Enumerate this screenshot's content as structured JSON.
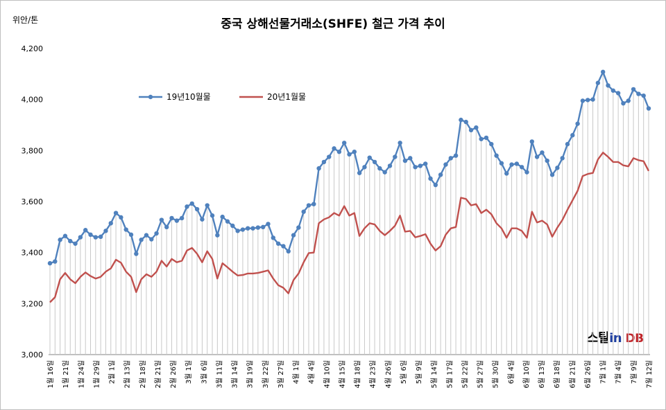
{
  "header": {
    "title": "중국 상해선물거래소(SHFE) 철근 가격 추이",
    "unit": "위안/톤"
  },
  "logo": {
    "part1": "스틸",
    "part2": "in",
    "part3": " DB"
  },
  "colors": {
    "series1": "#4f81bd",
    "series2": "#c0504d",
    "droplines": "#c8c8c8"
  },
  "chart_data": {
    "type": "line",
    "title": "중국 상해선물거래소(SHFE) 철근 가격 추이",
    "ylabel": "위안/톤",
    "ylim": [
      3000,
      4200
    ],
    "yticks": [
      3000,
      3200,
      3400,
      3600,
      3800,
      4000,
      4200
    ],
    "ytick_labels": [
      "3,000",
      "3,200",
      "3,400",
      "3,600",
      "3,800",
      "4,000",
      "4,200"
    ],
    "legend_position": "top-left",
    "drop_lines": true,
    "x_tick_labels": [
      "1월 16일",
      "1월 21일",
      "1월 24일",
      "1월 29일",
      "2월 1일",
      "2월 13일",
      "2월 18일",
      "2월 21일",
      "2월 26일",
      "3월 1일",
      "3월 6일",
      "3월 11일",
      "3월 14일",
      "3월 19일",
      "3월 22일",
      "3월 27일",
      "4월 1일",
      "4월 4일",
      "4월 10일",
      "4월 15일",
      "4월 18일",
      "4월 23일",
      "4월 26일",
      "5월 6일",
      "5월 9일",
      "5월 14일",
      "5월 17일",
      "5월 22일",
      "5월 27일",
      "5월 30일",
      "6월 4일",
      "6월 10일",
      "6월 13일",
      "6월 18일",
      "6월 21일",
      "6월 26일",
      "7월 1일",
      "7월 4일",
      "7월 9일",
      "7월 12일"
    ],
    "series": [
      {
        "name": "19년10월물",
        "values": [
          3358,
          3365,
          3450,
          3465,
          3445,
          3435,
          3460,
          3488,
          3470,
          3460,
          3462,
          3485,
          3515,
          3555,
          3538,
          3490,
          3470,
          3395,
          3450,
          3468,
          3452,
          3475,
          3528,
          3500,
          3535,
          3525,
          3535,
          3580,
          3592,
          3570,
          3530,
          3585,
          3545,
          3468,
          3540,
          3522,
          3505,
          3485,
          3490,
          3495,
          3495,
          3498,
          3500,
          3512,
          3458,
          3435,
          3425,
          3405,
          3468,
          3498,
          3560,
          3585,
          3590,
          3730,
          3755,
          3775,
          3808,
          3795,
          3830,
          3785,
          3795,
          3712,
          3735,
          3772,
          3755,
          3730,
          3715,
          3740,
          3775,
          3830,
          3760,
          3770,
          3735,
          3740,
          3748,
          3690,
          3665,
          3705,
          3745,
          3770,
          3780,
          3920,
          3912,
          3880,
          3890,
          3845,
          3850,
          3825,
          3780,
          3750,
          3710,
          3745,
          3748,
          3735,
          3715,
          3835,
          3775,
          3792,
          3760,
          3705,
          3732,
          3770,
          3825,
          3860,
          3905,
          3995,
          3998,
          4000,
          4065,
          4108,
          4055,
          4035,
          4025,
          3985,
          3995,
          4040,
          4022,
          4015,
          3965
        ]
      },
      {
        "name": "20년1월물",
        "values": [
          3205,
          3225,
          3295,
          3320,
          3295,
          3280,
          3305,
          3322,
          3308,
          3298,
          3305,
          3325,
          3338,
          3372,
          3360,
          3325,
          3305,
          3245,
          3295,
          3315,
          3305,
          3325,
          3368,
          3345,
          3375,
          3362,
          3368,
          3408,
          3418,
          3395,
          3362,
          3405,
          3375,
          3298,
          3358,
          3342,
          3325,
          3310,
          3312,
          3318,
          3318,
          3320,
          3325,
          3330,
          3298,
          3272,
          3262,
          3240,
          3292,
          3318,
          3362,
          3398,
          3400,
          3515,
          3530,
          3538,
          3555,
          3545,
          3582,
          3545,
          3555,
          3465,
          3495,
          3515,
          3510,
          3485,
          3468,
          3485,
          3505,
          3545,
          3482,
          3485,
          3460,
          3465,
          3472,
          3435,
          3408,
          3425,
          3470,
          3495,
          3500,
          3615,
          3610,
          3585,
          3590,
          3555,
          3568,
          3550,
          3515,
          3495,
          3458,
          3495,
          3495,
          3485,
          3458,
          3560,
          3518,
          3525,
          3510,
          3462,
          3498,
          3528,
          3568,
          3605,
          3642,
          3700,
          3708,
          3712,
          3765,
          3792,
          3775,
          3755,
          3755,
          3742,
          3738,
          3770,
          3762,
          3758,
          3720
        ]
      }
    ]
  }
}
